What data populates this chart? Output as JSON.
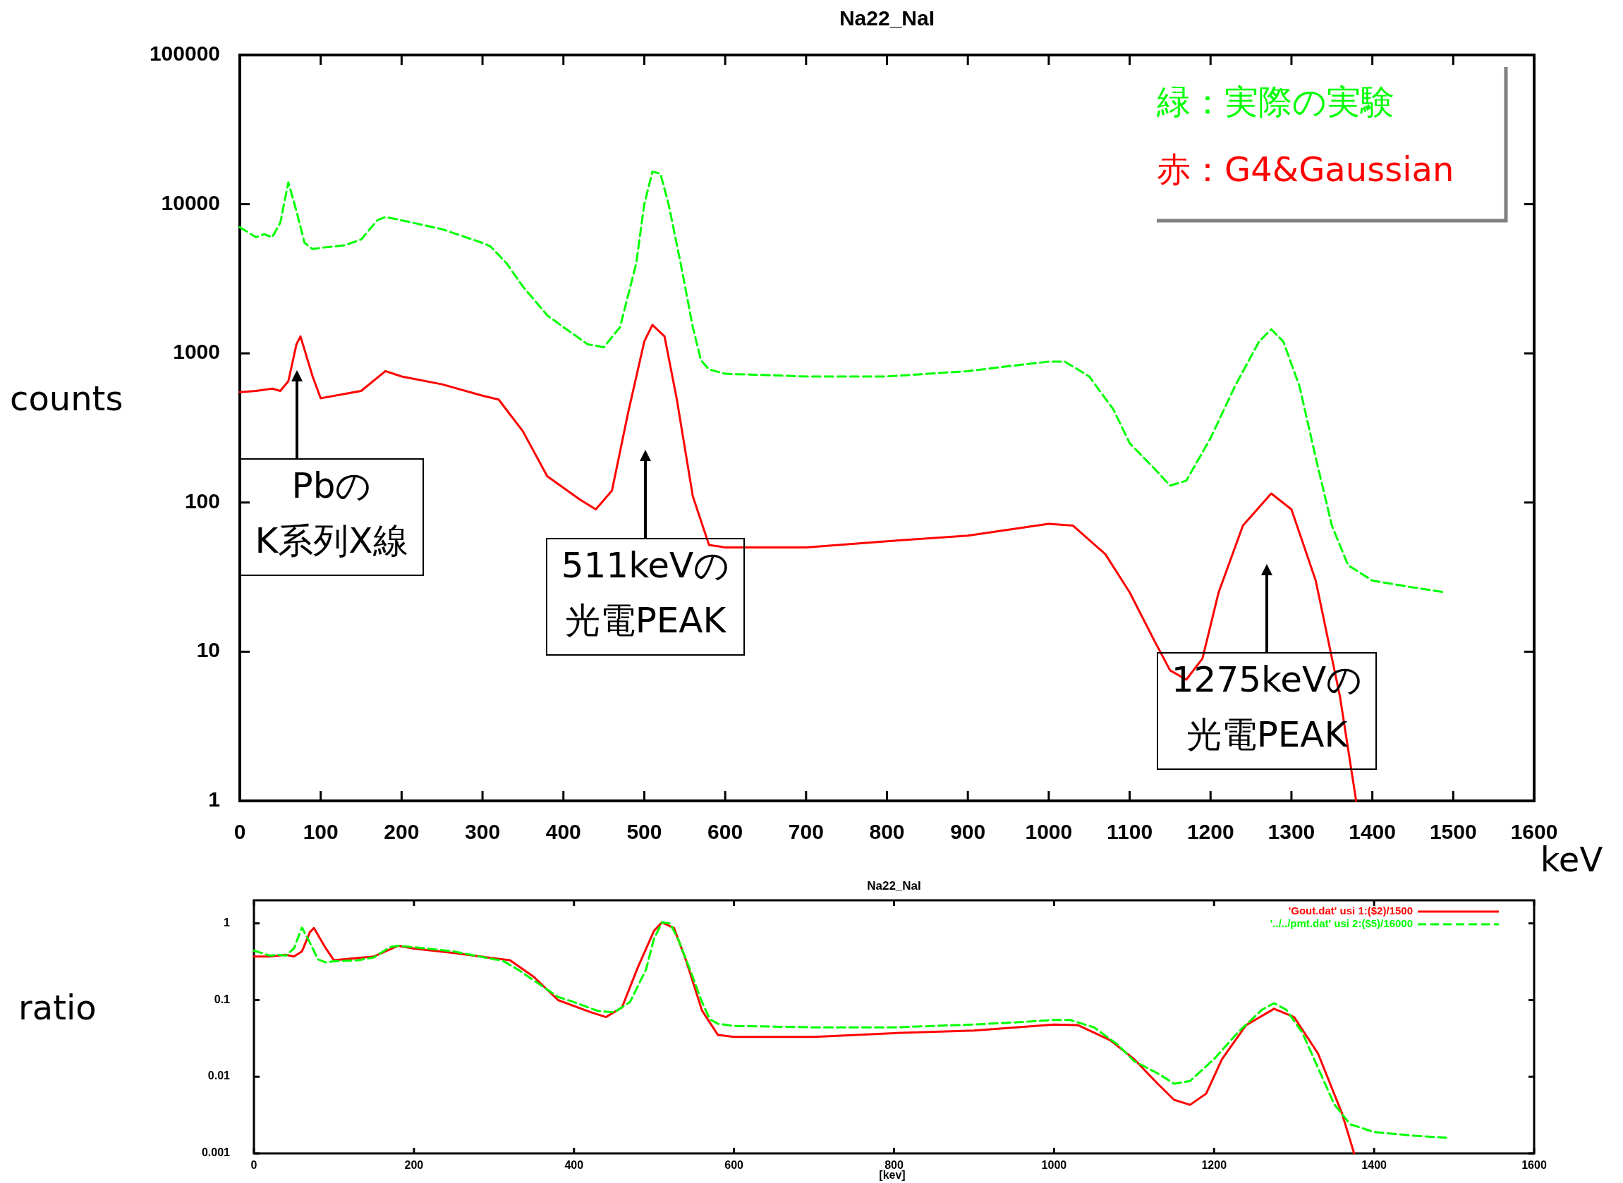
{
  "chart_data": [
    {
      "type": "line",
      "title": "Na22_NaI",
      "xlabel": "keV",
      "ylabel": "counts",
      "log": "y",
      "xlim": [
        0,
        1600
      ],
      "xticks": [
        0,
        100,
        200,
        300,
        400,
        500,
        600,
        700,
        800,
        900,
        1000,
        1100,
        1200,
        1300,
        1400,
        1500,
        1600
      ],
      "ylim": [
        1,
        100000
      ],
      "yticks": [
        1,
        10,
        100,
        1000,
        10000,
        100000
      ],
      "legend": "top right",
      "annotations": [
        "PbのK系列X線",
        "511keVの光電PEAK",
        "1275keVの光電PEAK"
      ],
      "series": [
        {
          "name": "緑：実際の実験",
          "color": "#00ff00",
          "line_style": "dashed",
          "x": [
            0,
            10,
            20,
            30,
            40,
            50,
            60,
            70,
            80,
            90,
            100,
            130,
            150,
            170,
            180,
            200,
            250,
            300,
            310,
            330,
            350,
            380,
            400,
            430,
            450,
            470,
            490,
            500,
            510,
            520,
            530,
            545,
            560,
            570,
            580,
            600,
            700,
            800,
            900,
            950,
            1000,
            1020,
            1050,
            1080,
            1100,
            1130,
            1150,
            1170,
            1200,
            1230,
            1260,
            1275,
            1290,
            1310,
            1330,
            1350,
            1370,
            1400,
            1450,
            1490
          ],
          "values": [
            7000,
            6500,
            6000,
            6300,
            6000,
            7500,
            14000,
            9000,
            5500,
            5000,
            5100,
            5300,
            5800,
            7800,
            8200,
            7800,
            6800,
            5500,
            5200,
            4000,
            2800,
            1800,
            1500,
            1150,
            1100,
            1500,
            4000,
            10000,
            16500,
            16000,
            10000,
            4000,
            1500,
            900,
            780,
            730,
            700,
            700,
            760,
            820,
            880,
            880,
            700,
            420,
            250,
            170,
            130,
            140,
            270,
            600,
            1200,
            1450,
            1200,
            600,
            200,
            70,
            38,
            30,
            27,
            25
          ]
        },
        {
          "name": "赤：G4&Gaussian",
          "color": "#ff0000",
          "line_style": "solid",
          "x": [
            0,
            20,
            40,
            50,
            60,
            70,
            75,
            90,
            100,
            150,
            180,
            200,
            250,
            300,
            320,
            350,
            380,
            420,
            440,
            460,
            480,
            500,
            510,
            525,
            540,
            560,
            580,
            600,
            700,
            800,
            900,
            1000,
            1030,
            1070,
            1100,
            1130,
            1150,
            1170,
            1190,
            1210,
            1240,
            1275,
            1300,
            1330,
            1360,
            1380
          ],
          "values": [
            550,
            560,
            580,
            560,
            650,
            1150,
            1300,
            700,
            500,
            560,
            760,
            700,
            620,
            520,
            490,
            300,
            150,
            105,
            90,
            120,
            400,
            1200,
            1550,
            1300,
            500,
            110,
            52,
            50,
            50,
            55,
            60,
            72,
            70,
            45,
            25,
            12,
            7.5,
            6.5,
            9,
            25,
            70,
            115,
            90,
            30,
            5,
            1
          ]
        }
      ]
    },
    {
      "type": "line",
      "title": "Na22_NaI",
      "xlabel": "[kev]",
      "ylabel": "ratio",
      "log": "y",
      "xlim": [
        0,
        1600
      ],
      "xticks": [
        0,
        200,
        400,
        600,
        800,
        1000,
        1200,
        1400,
        1600
      ],
      "ylim": [
        0.001,
        2
      ],
      "yticks": [
        0.001,
        0.01,
        0.1,
        1
      ],
      "legend": "top right",
      "series": [
        {
          "name": "'Gout.dat' usi 1:($2)/1500",
          "color": "#ff0000",
          "line_style": "solid",
          "x": [
            0,
            20,
            40,
            50,
            60,
            70,
            75,
            90,
            100,
            150,
            180,
            200,
            250,
            300,
            320,
            350,
            380,
            420,
            440,
            460,
            480,
            500,
            510,
            525,
            540,
            560,
            580,
            600,
            700,
            800,
            900,
            1000,
            1030,
            1070,
            1100,
            1130,
            1150,
            1170,
            1190,
            1210,
            1240,
            1275,
            1300,
            1330,
            1360,
            1375
          ],
          "values": [
            0.37,
            0.37,
            0.39,
            0.37,
            0.43,
            0.77,
            0.87,
            0.47,
            0.33,
            0.37,
            0.51,
            0.47,
            0.41,
            0.35,
            0.33,
            0.2,
            0.1,
            0.07,
            0.06,
            0.08,
            0.27,
            0.8,
            1.03,
            0.87,
            0.33,
            0.073,
            0.035,
            0.033,
            0.033,
            0.037,
            0.04,
            0.048,
            0.047,
            0.03,
            0.017,
            0.008,
            0.005,
            0.0043,
            0.006,
            0.017,
            0.047,
            0.077,
            0.06,
            0.02,
            0.0033,
            0.001
          ]
        },
        {
          "name": "'../../pmt.dat' usi 2:($5)/16000",
          "color": "#00ff00",
          "line_style": "dashed",
          "x": [
            0,
            10,
            20,
            30,
            40,
            50,
            60,
            70,
            80,
            90,
            100,
            130,
            150,
            170,
            180,
            200,
            250,
            300,
            310,
            330,
            350,
            380,
            400,
            430,
            450,
            470,
            490,
            500,
            510,
            520,
            530,
            545,
            560,
            570,
            580,
            600,
            700,
            800,
            900,
            950,
            1000,
            1020,
            1050,
            1080,
            1100,
            1130,
            1150,
            1170,
            1200,
            1230,
            1260,
            1275,
            1290,
            1310,
            1330,
            1350,
            1370,
            1400,
            1450,
            1490
          ],
          "values": [
            0.44,
            0.41,
            0.38,
            0.39,
            0.38,
            0.47,
            0.88,
            0.56,
            0.34,
            0.31,
            0.32,
            0.33,
            0.36,
            0.49,
            0.51,
            0.49,
            0.43,
            0.34,
            0.33,
            0.25,
            0.18,
            0.11,
            0.094,
            0.072,
            0.069,
            0.094,
            0.25,
            0.63,
            1.03,
            1.0,
            0.63,
            0.25,
            0.094,
            0.056,
            0.049,
            0.046,
            0.044,
            0.044,
            0.048,
            0.051,
            0.055,
            0.055,
            0.044,
            0.026,
            0.016,
            0.011,
            0.0081,
            0.0088,
            0.017,
            0.038,
            0.075,
            0.091,
            0.075,
            0.038,
            0.013,
            0.0044,
            0.0024,
            0.0019,
            0.0017,
            0.0016
          ]
        }
      ]
    }
  ]
}
